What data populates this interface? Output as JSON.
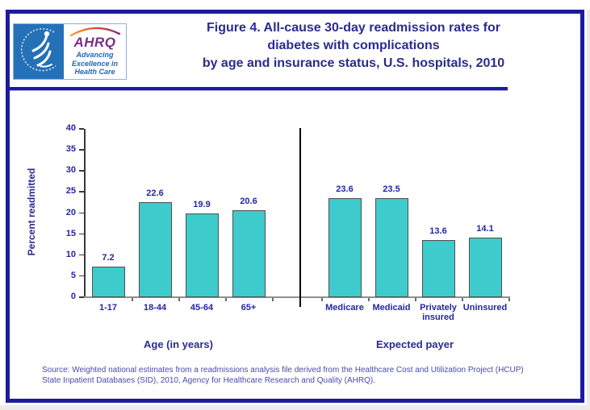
{
  "logo": {
    "ahrq_text": "AHRQ",
    "tagline_line1": "Advancing",
    "tagline_line2": "Excellence in",
    "tagline_line3": "Health Care"
  },
  "header": {
    "title_line1": "Figure 4. All-cause 30-day readmission rates for",
    "title_line2": "diabetes with complications",
    "title_line3": "by age and insurance status, U.S. hospitals, 2010"
  },
  "chart_data": {
    "type": "bar",
    "title": "All-cause 30-day readmission rates for diabetes with complications by age and insurance status, U.S. hospitals, 2010",
    "ylabel": "Percent readmitted",
    "xlabel": "",
    "ylim": [
      0,
      40
    ],
    "ytick_step": 5,
    "grid": false,
    "legend": "none",
    "bar_color": "#3ECBCB",
    "bar_border_color": "#4f4f4f",
    "label_color": "#2525a5",
    "groups": [
      {
        "label": "Age (in years)",
        "categories": [
          "1-17",
          "18-44",
          "45-64",
          "65+"
        ],
        "values": [
          7.2,
          22.6,
          19.9,
          20.6
        ]
      },
      {
        "label": "Expected payer",
        "categories": [
          "Medicare",
          "Medicaid",
          "Privately insured",
          "Uninsured"
        ],
        "values": [
          23.6,
          23.5,
          13.6,
          14.1
        ]
      }
    ]
  },
  "footer": {
    "source_line1": "Source: Weighted national estimates from a readmissions analysis file derived from the Healthcare Cost and Utilization Project (HCUP)",
    "source_line2": "State Inpatient Databases (SID), 2010, Agency for Healthcare Research and Quality (AHRQ)."
  }
}
